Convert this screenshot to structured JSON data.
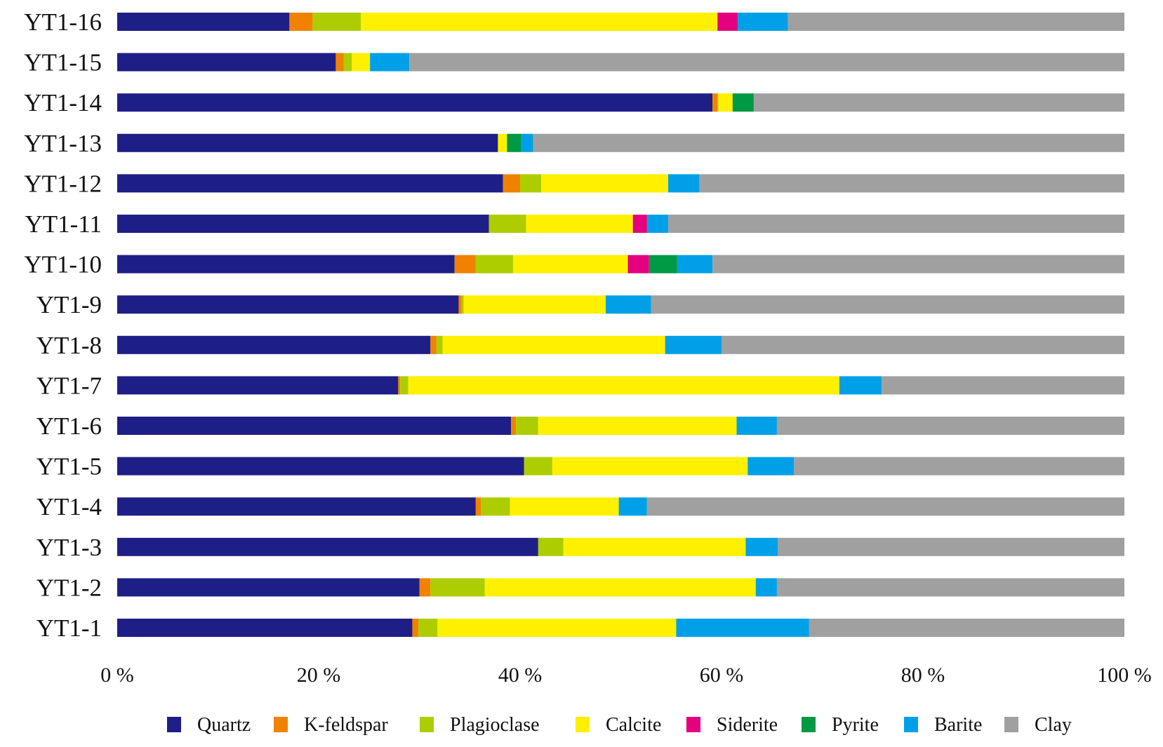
{
  "chart_data": {
    "type": "bar",
    "orientation": "horizontal",
    "stacked": "percent",
    "title": "",
    "xlabel": "",
    "ylabel": "",
    "xlim": [
      0,
      100
    ],
    "x_ticks": [
      "0 %",
      "20 %",
      "40 %",
      "60 %",
      "80 %",
      "100 %"
    ],
    "legend_position": "bottom",
    "categories": [
      "YT1-16",
      "YT1-15",
      "YT1-14",
      "YT1-13",
      "YT1-12",
      "YT1-11",
      "YT1-10",
      "YT1-9",
      "YT1-8",
      "YT1-7",
      "YT1-6",
      "YT1-5",
      "YT1-4",
      "YT1-3",
      "YT1-2",
      "YT1-1"
    ],
    "series": [
      {
        "name": "Quartz",
        "color": "#1e1e87",
        "values": [
          17.1,
          21.7,
          59.1,
          37.8,
          38.3,
          36.9,
          33.5,
          33.9,
          31.1,
          27.9,
          39.1,
          40.4,
          35.6,
          41.8,
          30.0,
          29.3
        ]
      },
      {
        "name": "K-feldspar",
        "color": "#f08200",
        "values": [
          2.3,
          0.8,
          0.5,
          0,
          1.7,
          0,
          2.1,
          0.3,
          0.6,
          0.2,
          0.5,
          0,
          0.5,
          0,
          1.1,
          0.6
        ]
      },
      {
        "name": "Plagioclase",
        "color": "#aecd00",
        "values": [
          4.8,
          0.8,
          0.1,
          0,
          2.1,
          3.7,
          3.7,
          0.2,
          0.6,
          0.8,
          2.2,
          2.8,
          2.9,
          2.5,
          5.4,
          1.9
        ]
      },
      {
        "name": "Calcite",
        "color": "#fff000",
        "values": [
          35.4,
          1.8,
          1.4,
          0.9,
          12.6,
          10.6,
          11.4,
          14.1,
          22.1,
          42.8,
          19.7,
          19.4,
          10.8,
          18.1,
          26.9,
          23.7
        ]
      },
      {
        "name": "Siderite",
        "color": "#e5007f",
        "values": [
          2.0,
          0,
          0,
          0,
          0,
          1.4,
          2.1,
          0,
          0,
          0,
          0,
          0,
          0,
          0,
          0,
          0
        ]
      },
      {
        "name": "Pyrite",
        "color": "#009944",
        "values": [
          0,
          0,
          2.1,
          1.4,
          0,
          0,
          2.8,
          0,
          0,
          0,
          0,
          0,
          0,
          0,
          0,
          0
        ]
      },
      {
        "name": "Barite",
        "color": "#00a0e9",
        "values": [
          5.0,
          3.9,
          0,
          1.2,
          3.1,
          2.1,
          3.5,
          4.5,
          5.6,
          4.2,
          4.0,
          4.6,
          2.8,
          3.2,
          2.1,
          13.2
        ]
      },
      {
        "name": "Clay",
        "color": "#a0a0a0",
        "values": [
          33.4,
          71.0,
          36.8,
          58.7,
          42.2,
          45.3,
          40.9,
          47.0,
          40.0,
          24.1,
          34.5,
          32.8,
          47.4,
          34.4,
          34.5,
          31.3
        ]
      }
    ]
  }
}
